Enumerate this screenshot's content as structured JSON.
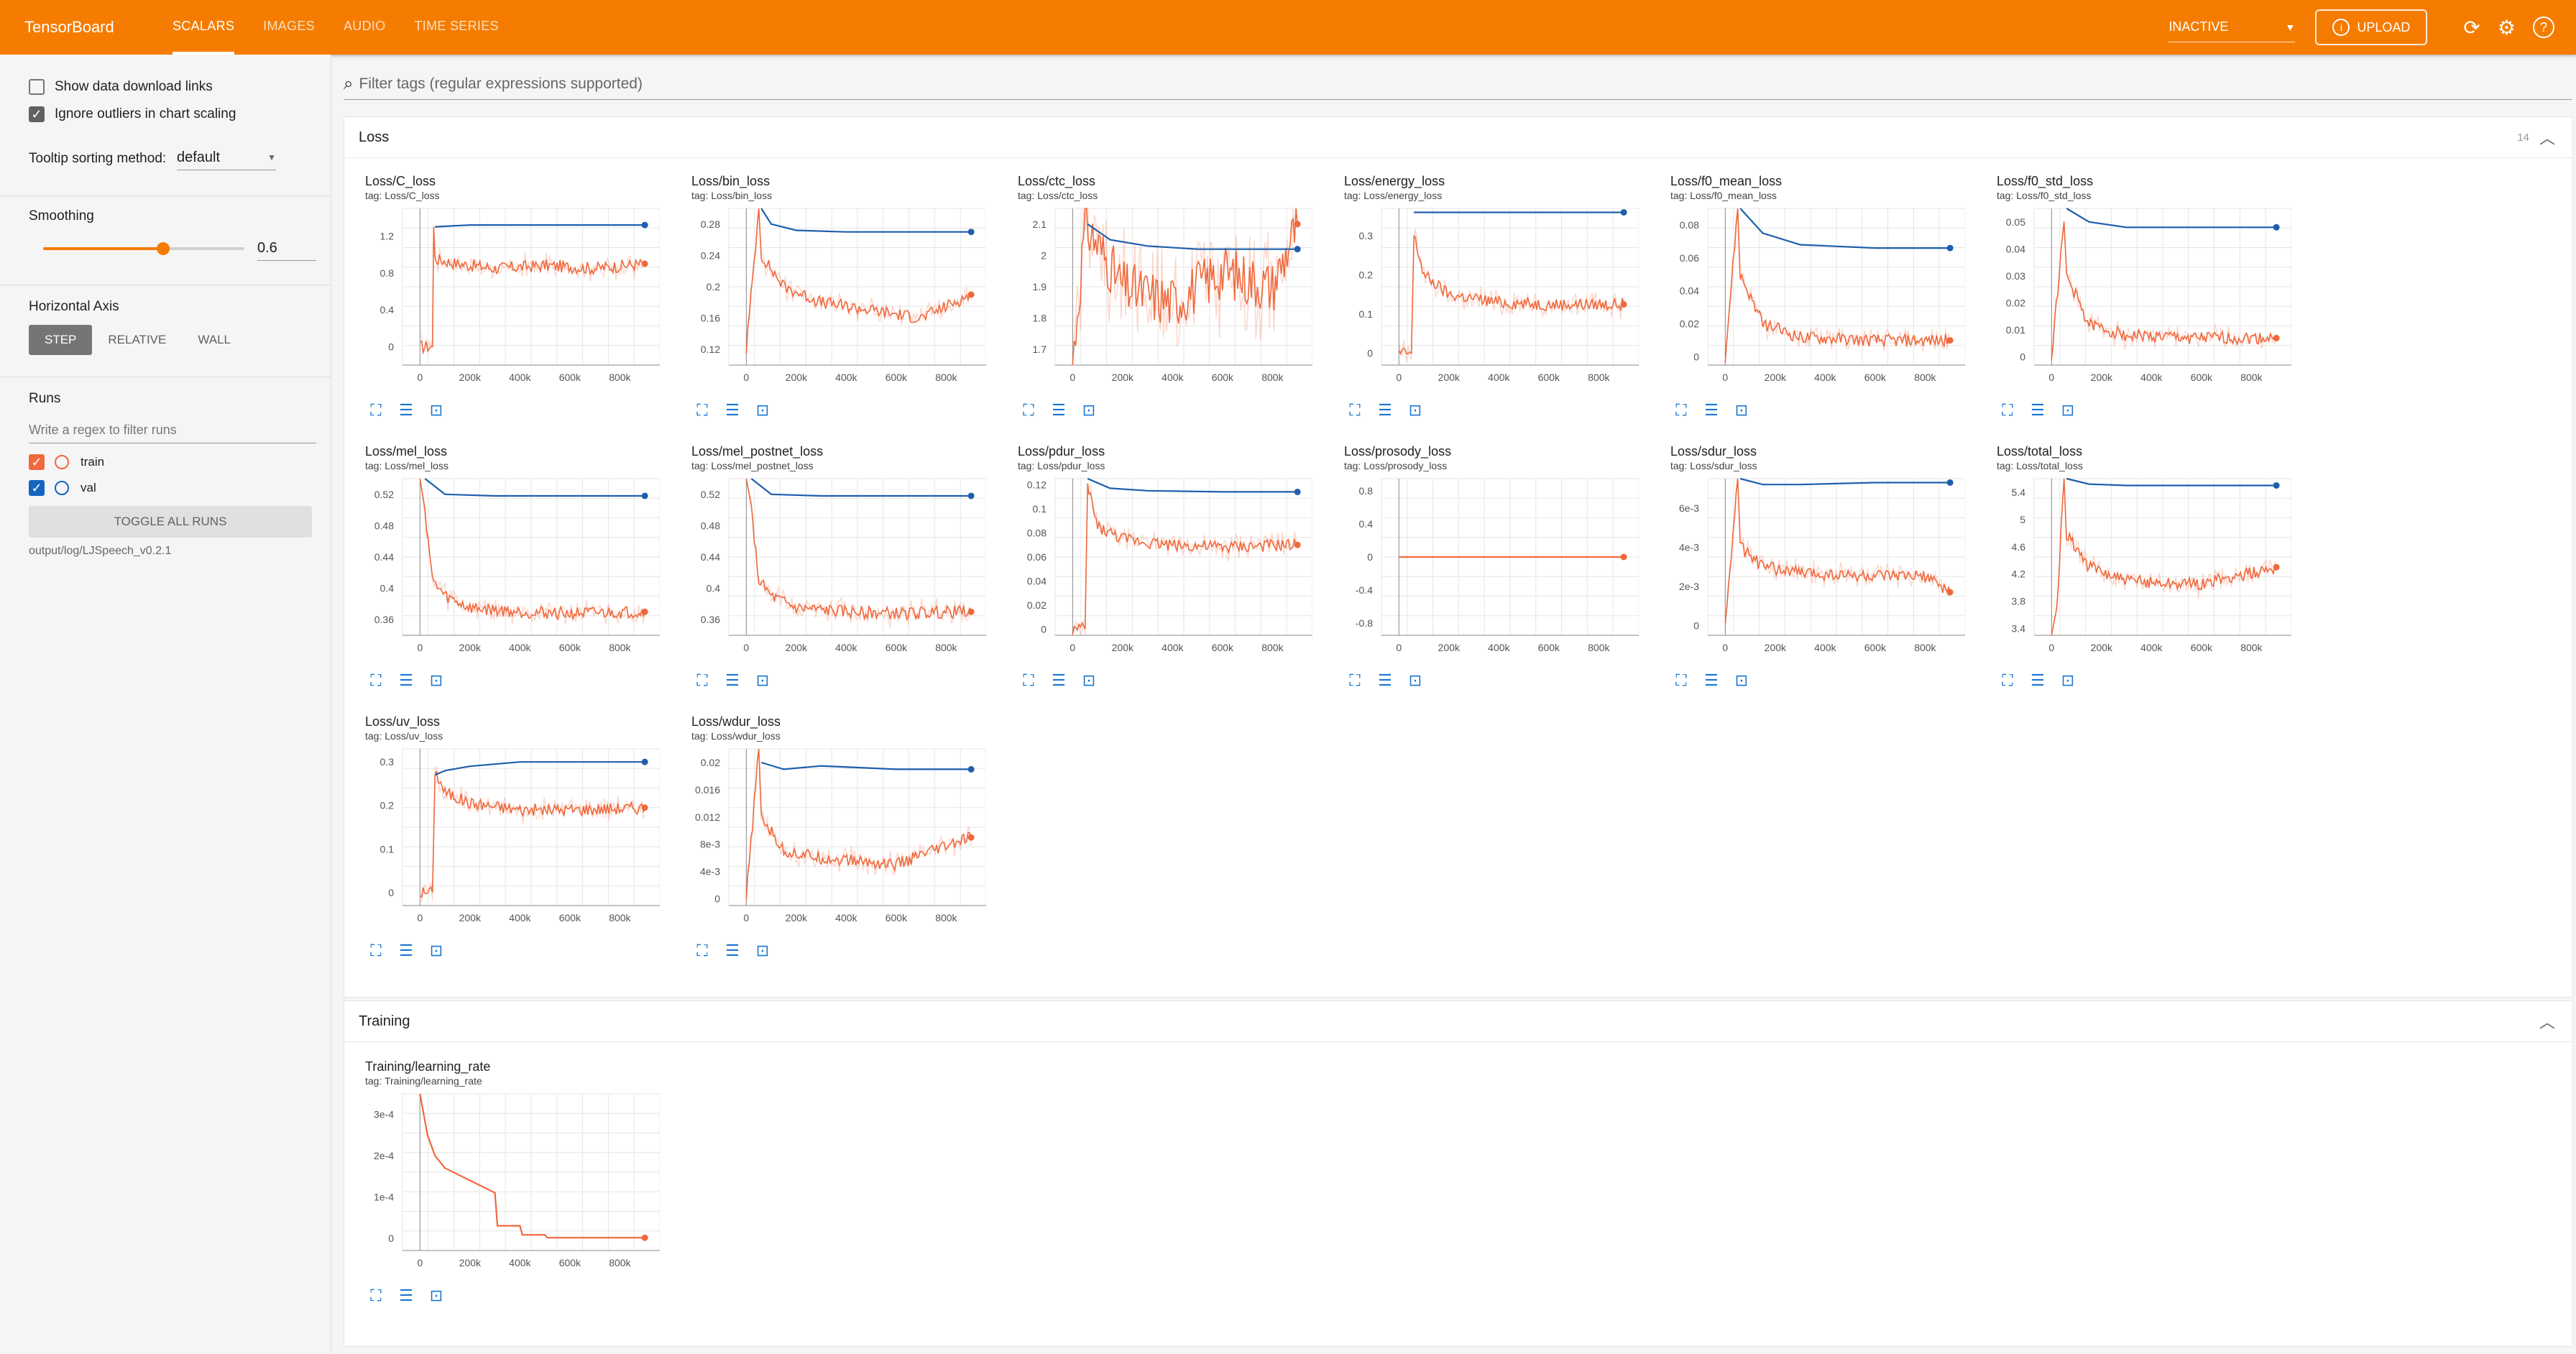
{
  "header": {
    "brand": "TensorBoard",
    "tabs": [
      "SCALARS",
      "IMAGES",
      "AUDIO",
      "TIME SERIES"
    ],
    "active_tab": "SCALARS",
    "status_select": "INACTIVE",
    "upload_label": "UPLOAD",
    "accent_color": "#f57c00"
  },
  "sidebar": {
    "show_download": "Show data download links",
    "ignore_outliers": "Ignore outliers in chart scaling",
    "tooltip_label": "Tooltip sorting method:",
    "tooltip_value": "default",
    "smoothing_label": "Smoothing",
    "smoothing_value": "0.6",
    "axis_label": "Horizontal Axis",
    "axis_options": [
      "STEP",
      "RELATIVE",
      "WALL"
    ],
    "runs_label": "Runs",
    "runs_filter_placeholder": "Write a regex to filter runs",
    "runs": [
      {
        "name": "train",
        "color": "#f0683c"
      },
      {
        "name": "val",
        "color": "#1565c0"
      }
    ],
    "toggle_label": "TOGGLE ALL RUNS",
    "logdir": "output/log/LJSpeech_v0.2.1"
  },
  "filter_placeholder": "Filter tags (regular expressions supported)",
  "sections": [
    {
      "title": "Loss",
      "count": "14"
    },
    {
      "title": "Training",
      "count": ""
    }
  ],
  "chart_data": [
    {
      "type": "line",
      "title": "Loss/C_loss",
      "tag": "tag: Loss/C_loss",
      "xticks": [
        "0",
        "200k",
        "400k",
        "600k",
        "800k"
      ],
      "yticks": [
        "0",
        "0.4",
        "0.8",
        "1.2"
      ],
      "ylim": [
        -0.2,
        1.5
      ],
      "series": [
        {
          "name": "train",
          "x": [
            0,
            50000,
            55000,
            60000,
            150000,
            300000,
            500000,
            700000,
            900000
          ],
          "y": [
            0,
            0,
            1.3,
            0.95,
            0.9,
            0.85,
            0.88,
            0.85,
            0.9
          ]
        },
        {
          "name": "val",
          "x": [
            60000,
            200000,
            400000,
            600000,
            800000,
            900000
          ],
          "y": [
            1.3,
            1.32,
            1.32,
            1.32,
            1.32,
            1.32
          ]
        }
      ]
    },
    {
      "type": "line",
      "title": "Loss/bin_loss",
      "tag": "tag: Loss/bin_loss",
      "xticks": [
        "0",
        "200k",
        "400k",
        "600k",
        "800k"
      ],
      "yticks": [
        "0.12",
        "0.16",
        "0.2",
        "0.24",
        "0.28"
      ],
      "ylim": [
        0.1,
        0.3
      ],
      "series": [
        {
          "name": "train",
          "x": [
            0,
            50000,
            60000,
            150000,
            300000,
            500000,
            700000,
            900000
          ],
          "y": [
            0.12,
            0.3,
            0.24,
            0.2,
            0.18,
            0.17,
            0.16,
            0.19
          ]
        },
        {
          "name": "val",
          "x": [
            60000,
            100000,
            200000,
            400000,
            600000,
            800000,
            900000
          ],
          "y": [
            0.3,
            0.28,
            0.272,
            0.27,
            0.27,
            0.27,
            0.27
          ]
        }
      ]
    },
    {
      "type": "line",
      "title": "Loss/ctc_loss",
      "tag": "tag: Loss/ctc_loss",
      "xticks": [
        "0",
        "200k",
        "400k",
        "600k",
        "800k"
      ],
      "yticks": [
        "1.7",
        "1.8",
        "1.9",
        "2",
        "2.1"
      ],
      "ylim": [
        1.65,
        2.15
      ],
      "series": [
        {
          "name": "train",
          "x": [
            0,
            50000,
            200000,
            400000,
            600000,
            800000,
            900000
          ],
          "y": [
            1.65,
            2.1,
            1.9,
            1.85,
            1.95,
            1.9,
            2.1
          ]
        },
        {
          "name": "val",
          "x": [
            60000,
            150000,
            300000,
            500000,
            700000,
            900000
          ],
          "y": [
            2.1,
            2.05,
            2.03,
            2.02,
            2.02,
            2.02
          ]
        }
      ]
    },
    {
      "type": "line",
      "title": "Loss/energy_loss",
      "tag": "tag: Loss/energy_loss",
      "xticks": [
        "0",
        "200k",
        "400k",
        "600k",
        "800k"
      ],
      "yticks": [
        "0",
        "0.1",
        "0.2",
        "0.3"
      ],
      "ylim": [
        -0.03,
        0.37
      ],
      "series": [
        {
          "name": "train",
          "x": [
            0,
            50000,
            60000,
            100000,
            200000,
            400000,
            600000,
            900000
          ],
          "y": [
            0,
            0,
            0.3,
            0.2,
            0.15,
            0.13,
            0.125,
            0.125
          ]
        },
        {
          "name": "val",
          "x": [
            60000,
            200000,
            400000,
            600000,
            900000
          ],
          "y": [
            0.36,
            0.36,
            0.36,
            0.36,
            0.36
          ]
        }
      ]
    },
    {
      "type": "line",
      "title": "Loss/f0_mean_loss",
      "tag": "tag: Loss/f0_mean_loss",
      "xticks": [
        "0",
        "200k",
        "400k",
        "600k",
        "800k"
      ],
      "yticks": [
        "0",
        "0.02",
        "0.04",
        "0.06",
        "0.08"
      ],
      "ylim": [
        -0.005,
        0.09
      ],
      "series": [
        {
          "name": "train",
          "x": [
            0,
            50000,
            60000,
            150000,
            300000,
            600000,
            900000
          ],
          "y": [
            0,
            0.09,
            0.05,
            0.02,
            0.012,
            0.01,
            0.01
          ]
        },
        {
          "name": "val",
          "x": [
            60000,
            150000,
            300000,
            600000,
            900000
          ],
          "y": [
            0.09,
            0.075,
            0.068,
            0.066,
            0.066
          ]
        }
      ]
    },
    {
      "type": "line",
      "title": "Loss/f0_std_loss",
      "tag": "tag: Loss/f0_std_loss",
      "xticks": [
        "0",
        "200k",
        "400k",
        "600k",
        "800k"
      ],
      "yticks": [
        "0",
        "0.01",
        "0.02",
        "0.03",
        "0.04",
        "0.05"
      ],
      "ylim": [
        -0.003,
        0.055
      ],
      "series": [
        {
          "name": "train",
          "x": [
            0,
            50000,
            60000,
            150000,
            300000,
            600000,
            900000
          ],
          "y": [
            0,
            0.05,
            0.03,
            0.012,
            0.008,
            0.007,
            0.007
          ]
        },
        {
          "name": "val",
          "x": [
            60000,
            150000,
            300000,
            600000,
            900000
          ],
          "y": [
            0.055,
            0.05,
            0.048,
            0.048,
            0.048
          ]
        }
      ]
    },
    {
      "type": "line",
      "title": "Loss/mel_loss",
      "tag": "tag: Loss/mel_loss",
      "xticks": [
        "0",
        "200k",
        "400k",
        "600k",
        "800k"
      ],
      "yticks": [
        "0.36",
        "0.4",
        "0.44",
        "0.48",
        "0.52"
      ],
      "ylim": [
        0.34,
        0.54
      ],
      "series": [
        {
          "name": "train",
          "x": [
            0,
            20000,
            50000,
            100000,
            200000,
            400000,
            600000,
            900000
          ],
          "y": [
            0.54,
            0.5,
            0.41,
            0.39,
            0.375,
            0.37,
            0.368,
            0.37
          ]
        },
        {
          "name": "val",
          "x": [
            20000,
            100000,
            300000,
            600000,
            900000
          ],
          "y": [
            0.54,
            0.52,
            0.518,
            0.518,
            0.518
          ]
        }
      ]
    },
    {
      "type": "line",
      "title": "Loss/mel_postnet_loss",
      "tag": "tag: Loss/mel_postnet_loss",
      "xticks": [
        "0",
        "200k",
        "400k",
        "600k",
        "800k"
      ],
      "yticks": [
        "0.36",
        "0.4",
        "0.44",
        "0.48",
        "0.52"
      ],
      "ylim": [
        0.34,
        0.54
      ],
      "series": [
        {
          "name": "train",
          "x": [
            0,
            20000,
            50000,
            100000,
            200000,
            400000,
            600000,
            900000
          ],
          "y": [
            0.54,
            0.5,
            0.41,
            0.39,
            0.375,
            0.37,
            0.368,
            0.37
          ]
        },
        {
          "name": "val",
          "x": [
            20000,
            100000,
            300000,
            600000,
            900000
          ],
          "y": [
            0.54,
            0.52,
            0.518,
            0.518,
            0.518
          ]
        }
      ]
    },
    {
      "type": "line",
      "title": "Loss/pdur_loss",
      "tag": "tag: Loss/pdur_loss",
      "xticks": [
        "0",
        "200k",
        "400k",
        "600k",
        "800k"
      ],
      "yticks": [
        "0",
        "0.02",
        "0.04",
        "0.06",
        "0.08",
        "0.1",
        "0.12"
      ],
      "ylim": [
        -0.005,
        0.125
      ],
      "series": [
        {
          "name": "train",
          "x": [
            0,
            50000,
            60000,
            100000,
            200000,
            400000,
            600000,
            900000
          ],
          "y": [
            0,
            0,
            0.12,
            0.085,
            0.075,
            0.07,
            0.068,
            0.07
          ]
        },
        {
          "name": "val",
          "x": [
            60000,
            150000,
            300000,
            600000,
            900000
          ],
          "y": [
            0.125,
            0.117,
            0.115,
            0.114,
            0.114
          ]
        }
      ]
    },
    {
      "type": "line",
      "title": "Loss/prosody_loss",
      "tag": "tag: Loss/prosody_loss",
      "xticks": [
        "0",
        "200k",
        "400k",
        "600k",
        "800k"
      ],
      "yticks": [
        "-0.8",
        "-0.4",
        "0",
        "0.4",
        "0.8"
      ],
      "ylim": [
        -0.95,
        0.95
      ],
      "series": [
        {
          "name": "train",
          "x": [
            0,
            900000
          ],
          "y": [
            0,
            0
          ]
        }
      ]
    },
    {
      "type": "line",
      "title": "Loss/sdur_loss",
      "tag": "tag: Loss/sdur_loss",
      "xticks": [
        "0",
        "200k",
        "400k",
        "600k",
        "800k"
      ],
      "yticks": [
        "0",
        "2e-3",
        "4e-3",
        "6e-3"
      ],
      "ylim": [
        -0.0005,
        0.0075
      ],
      "series": [
        {
          "name": "train",
          "x": [
            0,
            50000,
            60000,
            150000,
            300000,
            600000,
            800000,
            900000
          ],
          "y": [
            0,
            0.0075,
            0.004,
            0.003,
            0.0027,
            0.0025,
            0.0025,
            0.0017
          ]
        },
        {
          "name": "val",
          "x": [
            60000,
            150000,
            300000,
            600000,
            900000
          ],
          "y": [
            0.0075,
            0.0072,
            0.0072,
            0.0073,
            0.0073
          ]
        }
      ]
    },
    {
      "type": "line",
      "title": "Loss/total_loss",
      "tag": "tag: Loss/total_loss",
      "xticks": [
        "0",
        "200k",
        "400k",
        "600k",
        "800k"
      ],
      "yticks": [
        "3.4",
        "3.8",
        "4.2",
        "4.6",
        "5",
        "5.4"
      ],
      "ylim": [
        3.3,
        5.6
      ],
      "series": [
        {
          "name": "train",
          "x": [
            0,
            20000,
            50000,
            60000,
            150000,
            300000,
            600000,
            900000
          ],
          "y": [
            3.3,
            3.6,
            5.6,
            4.8,
            4.3,
            4.1,
            4.05,
            4.3
          ]
        },
        {
          "name": "val",
          "x": [
            60000,
            150000,
            300000,
            600000,
            900000
          ],
          "y": [
            5.6,
            5.52,
            5.5,
            5.5,
            5.5
          ]
        }
      ]
    },
    {
      "type": "line",
      "title": "Loss/uv_loss",
      "tag": "tag: Loss/uv_loss",
      "xticks": [
        "0",
        "200k",
        "400k",
        "600k",
        "800k"
      ],
      "yticks": [
        "0",
        "0.1",
        "0.2",
        "0.3"
      ],
      "ylim": [
        -0.03,
        0.33
      ],
      "series": [
        {
          "name": "train",
          "x": [
            0,
            50000,
            60000,
            100000,
            200000,
            400000,
            600000,
            900000
          ],
          "y": [
            0,
            0,
            0.28,
            0.23,
            0.205,
            0.19,
            0.19,
            0.195
          ]
        },
        {
          "name": "val",
          "x": [
            60000,
            100000,
            200000,
            400000,
            600000,
            900000
          ],
          "y": [
            0.27,
            0.28,
            0.29,
            0.3,
            0.3,
            0.3
          ]
        }
      ]
    },
    {
      "type": "line",
      "title": "Loss/wdur_loss",
      "tag": "tag: Loss/wdur_loss",
      "xticks": [
        "0",
        "200k",
        "400k",
        "600k",
        "800k"
      ],
      "yticks": [
        "0",
        "4e-3",
        "8e-3",
        "0.012",
        "0.016",
        "0.02"
      ],
      "ylim": [
        -0.001,
        0.022
      ],
      "series": [
        {
          "name": "train",
          "x": [
            0,
            50000,
            60000,
            150000,
            300000,
            600000,
            900000
          ],
          "y": [
            0,
            0.022,
            0.012,
            0.007,
            0.006,
            0.005,
            0.009
          ]
        },
        {
          "name": "val",
          "x": [
            60000,
            150000,
            300000,
            600000,
            900000
          ],
          "y": [
            0.02,
            0.019,
            0.0195,
            0.019,
            0.019
          ]
        }
      ]
    },
    {
      "type": "line",
      "title": "Training/learning_rate",
      "tag": "tag: Training/learning_rate",
      "xticks": [
        "0",
        "200k",
        "400k",
        "600k",
        "800k"
      ],
      "yticks": [
        "0",
        "1e-4",
        "2e-4",
        "3e-4"
      ],
      "ylim": [
        -3e-05,
        0.00035
      ],
      "series": [
        {
          "name": "train",
          "x": [
            0,
            30000,
            60000,
            100000,
            200000,
            300000,
            310000,
            400000,
            410000,
            500000,
            510000,
            900000
          ],
          "y": [
            0.00035,
            0.00025,
            0.0002,
            0.00017,
            0.00014,
            0.00011,
            3e-05,
            3e-05,
            8e-06,
            8e-06,
            1e-06,
            1e-06
          ]
        }
      ]
    }
  ]
}
